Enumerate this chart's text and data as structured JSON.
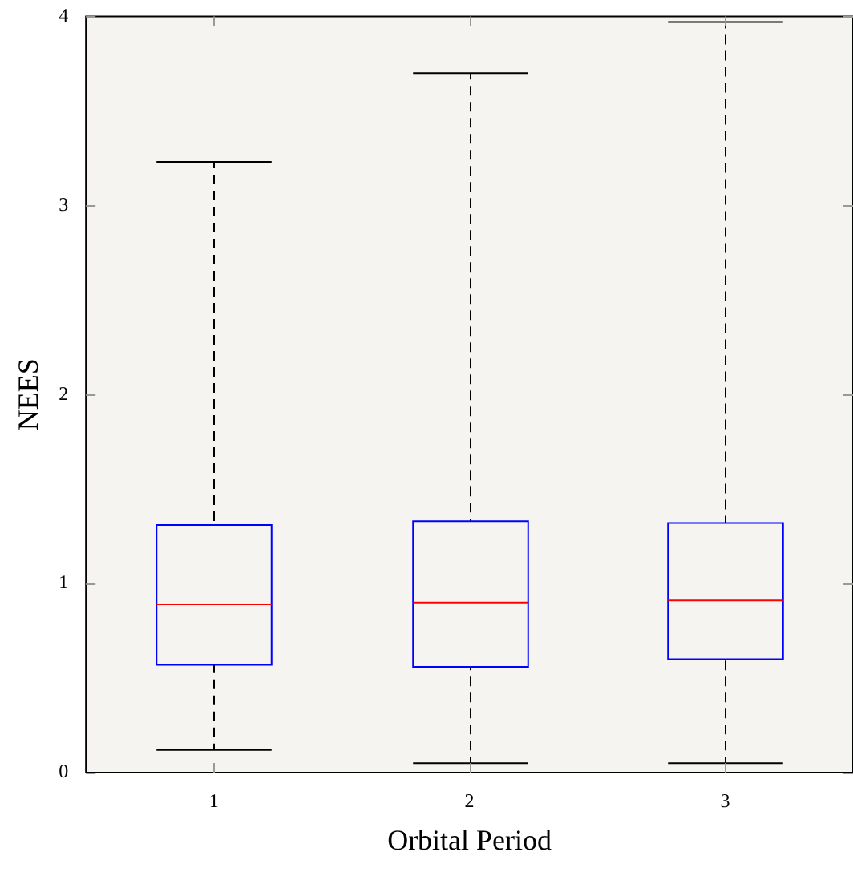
{
  "chart_data": {
    "type": "box",
    "xlabel": "Orbital Period",
    "ylabel": "NEES",
    "categories": [
      "1",
      "2",
      "3"
    ],
    "series": [
      {
        "color": "#0000ff",
        "boxes": [
          {
            "low": 0.12,
            "q1": 0.57,
            "median": 0.89,
            "q3": 1.31,
            "high": 3.23
          },
          {
            "low": 0.05,
            "q1": 0.56,
            "median": 0.9,
            "q3": 1.33,
            "high": 3.7
          },
          {
            "low": 0.05,
            "q1": 0.6,
            "median": 0.91,
            "q3": 1.32,
            "high": 3.97
          }
        ]
      }
    ],
    "ylim": [
      0,
      4
    ],
    "yticks": [
      0,
      1,
      2,
      3,
      4
    ],
    "grid": false,
    "legend": false
  }
}
